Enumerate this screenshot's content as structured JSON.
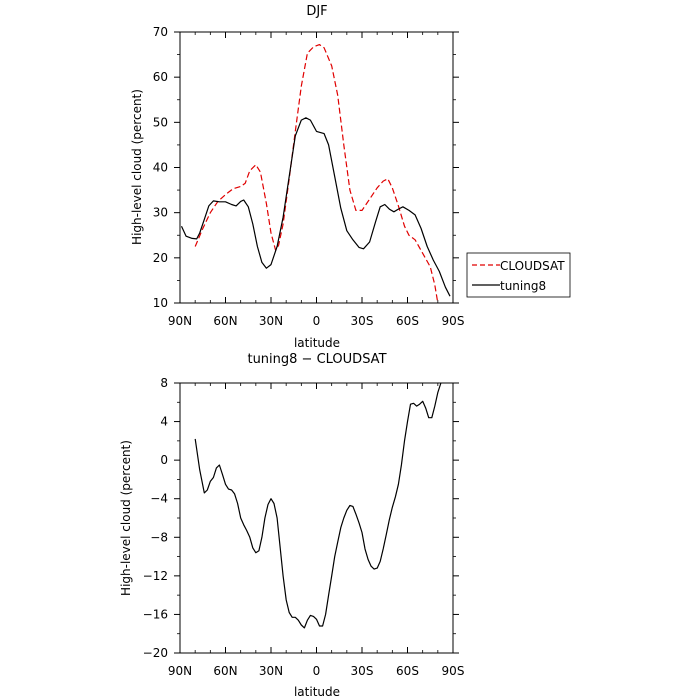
{
  "chart_data": [
    {
      "type": "line",
      "title": "DJF",
      "xlabel": "latitude",
      "ylabel": "High-level cloud (percent)",
      "xlim": [
        90,
        -90
      ],
      "ylim": [
        10,
        70
      ],
      "x_ticks": [
        90,
        60,
        30,
        0,
        -30,
        -60,
        -90
      ],
      "x_tick_labels": [
        "90N",
        "60N",
        "30N",
        "0",
        "30S",
        "60S",
        "90S"
      ],
      "y_ticks": [
        10,
        20,
        30,
        40,
        50,
        60,
        70
      ],
      "y_tick_labels": [
        "10",
        "20",
        "30",
        "40",
        "50",
        "60",
        "70"
      ],
      "legend_position": "right",
      "series": [
        {
          "name": "CLOUDSAT",
          "color": "#e00000",
          "dash": "dashed",
          "points": [
            [
              80,
              22.5
            ],
            [
              75,
              26.5
            ],
            [
              70,
              30
            ],
            [
              65,
              32.5
            ],
            [
              60,
              34
            ],
            [
              55,
              35.3
            ],
            [
              50,
              35.8
            ],
            [
              47,
              36.5
            ],
            [
              44,
              39.3
            ],
            [
              40,
              40.6
            ],
            [
              37,
              39
            ],
            [
              33,
              32
            ],
            [
              30,
              25.5
            ],
            [
              27,
              21.7
            ],
            [
              25,
              22.8
            ],
            [
              22,
              27.5
            ],
            [
              18,
              37.5
            ],
            [
              14,
              48
            ],
            [
              10,
              58
            ],
            [
              6,
              65.3
            ],
            [
              2,
              66.7
            ],
            [
              -2,
              67.2
            ],
            [
              -5,
              66.5
            ],
            [
              -10,
              62.5
            ],
            [
              -14,
              56
            ],
            [
              -18,
              45
            ],
            [
              -22,
              35
            ],
            [
              -26,
              30.5
            ],
            [
              -30,
              30.5
            ],
            [
              -35,
              33
            ],
            [
              -40,
              35.5
            ],
            [
              -44,
              37
            ],
            [
              -47,
              37.5
            ],
            [
              -50,
              35.5
            ],
            [
              -54,
              31.5
            ],
            [
              -58,
              27
            ],
            [
              -61,
              25
            ],
            [
              -65,
              24
            ],
            [
              -70,
              21
            ],
            [
              -75,
              18
            ],
            [
              -78,
              14
            ],
            [
              -80,
              10
            ]
          ]
        },
        {
          "name": "tuning8",
          "color": "#000000",
          "dash": "solid",
          "points": [
            [
              89,
              27
            ],
            [
              86,
              24.8
            ],
            [
              82,
              24.3
            ],
            [
              79,
              24.2
            ],
            [
              77,
              25.5
            ],
            [
              74,
              28.5
            ],
            [
              71,
              31.5
            ],
            [
              68,
              32.6
            ],
            [
              64,
              32.4
            ],
            [
              60,
              32.4
            ],
            [
              56,
              31.8
            ],
            [
              53,
              31.5
            ],
            [
              50,
              32.5
            ],
            [
              48,
              32.8
            ],
            [
              45,
              31.3
            ],
            [
              42,
              27.5
            ],
            [
              39,
              22.5
            ],
            [
              36,
              19
            ],
            [
              33,
              17.7
            ],
            [
              30,
              18.5
            ],
            [
              26,
              22.5
            ],
            [
              22,
              29
            ],
            [
              18,
              38
            ],
            [
              14,
              47
            ],
            [
              10,
              50.5
            ],
            [
              7,
              51
            ],
            [
              4,
              50.5
            ],
            [
              0,
              48
            ],
            [
              -5,
              47.5
            ],
            [
              -8,
              45
            ],
            [
              -12,
              38
            ],
            [
              -16,
              31
            ],
            [
              -20,
              26
            ],
            [
              -24,
              24
            ],
            [
              -28,
              22.3
            ],
            [
              -31,
              22
            ],
            [
              -35,
              23.5
            ],
            [
              -39,
              28
            ],
            [
              -42,
              31.3
            ],
            [
              -45,
              31.8
            ],
            [
              -48,
              30.8
            ],
            [
              -51,
              30.2
            ],
            [
              -54,
              30.8
            ],
            [
              -57,
              31.3
            ],
            [
              -61,
              30.5
            ],
            [
              -65,
              29.5
            ],
            [
              -69,
              26.5
            ],
            [
              -73,
              22.5
            ],
            [
              -77,
              19.5
            ],
            [
              -81,
              17
            ],
            [
              -85,
              13.5
            ],
            [
              -88,
              11.5
            ]
          ]
        }
      ]
    },
    {
      "type": "line",
      "title": "tuning8 − CLOUDSAT",
      "xlabel": "latitude",
      "ylabel": "High-level cloud (percent)",
      "xlim": [
        90,
        -90
      ],
      "ylim": [
        -20,
        8
      ],
      "x_ticks": [
        90,
        60,
        30,
        0,
        -30,
        -60,
        -90
      ],
      "x_tick_labels": [
        "90N",
        "60N",
        "30N",
        "0",
        "30S",
        "60S",
        "90S"
      ],
      "y_ticks": [
        -20,
        -16,
        -12,
        -8,
        -4,
        0,
        4,
        8
      ],
      "y_tick_labels": [
        "−20",
        "−16",
        "−12",
        "−8",
        "−4",
        "0",
        "4",
        "8"
      ],
      "series": [
        {
          "color": "#000000",
          "dash": "solid",
          "points": [
            [
              80,
              2.2
            ],
            [
              77,
              -1
            ],
            [
              74,
              -3.4
            ],
            [
              72,
              -3.1
            ],
            [
              70,
              -2.2
            ],
            [
              68,
              -1.8
            ],
            [
              66,
              -0.8
            ],
            [
              64,
              -0.5
            ],
            [
              62,
              -1.5
            ],
            [
              60,
              -2.5
            ],
            [
              58,
              -3
            ],
            [
              56,
              -3.1
            ],
            [
              54,
              -3.5
            ],
            [
              52,
              -4.5
            ],
            [
              50,
              -6
            ],
            [
              48,
              -6.7
            ],
            [
              46,
              -7.3
            ],
            [
              44,
              -8
            ],
            [
              42,
              -9.1
            ],
            [
              40,
              -9.6
            ],
            [
              38,
              -9.4
            ],
            [
              36,
              -8
            ],
            [
              34,
              -6
            ],
            [
              32,
              -4.6
            ],
            [
              30,
              -4
            ],
            [
              28,
              -4.5
            ],
            [
              26,
              -6
            ],
            [
              24,
              -9
            ],
            [
              22,
              -12
            ],
            [
              20,
              -14.5
            ],
            [
              18,
              -15.8
            ],
            [
              16,
              -16.3
            ],
            [
              14,
              -16.3
            ],
            [
              12,
              -16.6
            ],
            [
              10,
              -17.1
            ],
            [
              8,
              -17.4
            ],
            [
              6,
              -16.6
            ],
            [
              4,
              -16.1
            ],
            [
              2,
              -16.2
            ],
            [
              0,
              -16.5
            ],
            [
              -2,
              -17.2
            ],
            [
              -4,
              -17.2
            ],
            [
              -6,
              -16
            ],
            [
              -8,
              -14
            ],
            [
              -10,
              -12
            ],
            [
              -12,
              -10
            ],
            [
              -14,
              -8.5
            ],
            [
              -16,
              -7
            ],
            [
              -18,
              -6
            ],
            [
              -20,
              -5.2
            ],
            [
              -22,
              -4.7
            ],
            [
              -24,
              -4.8
            ],
            [
              -26,
              -5.6
            ],
            [
              -28,
              -6.5
            ],
            [
              -30,
              -7.5
            ],
            [
              -32,
              -9.2
            ],
            [
              -34,
              -10.3
            ],
            [
              -36,
              -11
            ],
            [
              -38,
              -11.3
            ],
            [
              -40,
              -11.2
            ],
            [
              -42,
              -10.5
            ],
            [
              -44,
              -9.2
            ],
            [
              -46,
              -7.7
            ],
            [
              -48,
              -6.2
            ],
            [
              -50,
              -4.9
            ],
            [
              -52,
              -3.8
            ],
            [
              -54,
              -2.5
            ],
            [
              -56,
              -0.5
            ],
            [
              -58,
              2
            ],
            [
              -60,
              4
            ],
            [
              -62,
              5.8
            ],
            [
              -64,
              5.9
            ],
            [
              -66,
              5.6
            ],
            [
              -68,
              5.8
            ],
            [
              -70,
              6.1
            ],
            [
              -72,
              5.4
            ],
            [
              -74,
              4.4
            ],
            [
              -76,
              4.4
            ],
            [
              -78,
              5.6
            ],
            [
              -80,
              7
            ],
            [
              -82,
              8
            ]
          ]
        }
      ]
    }
  ]
}
